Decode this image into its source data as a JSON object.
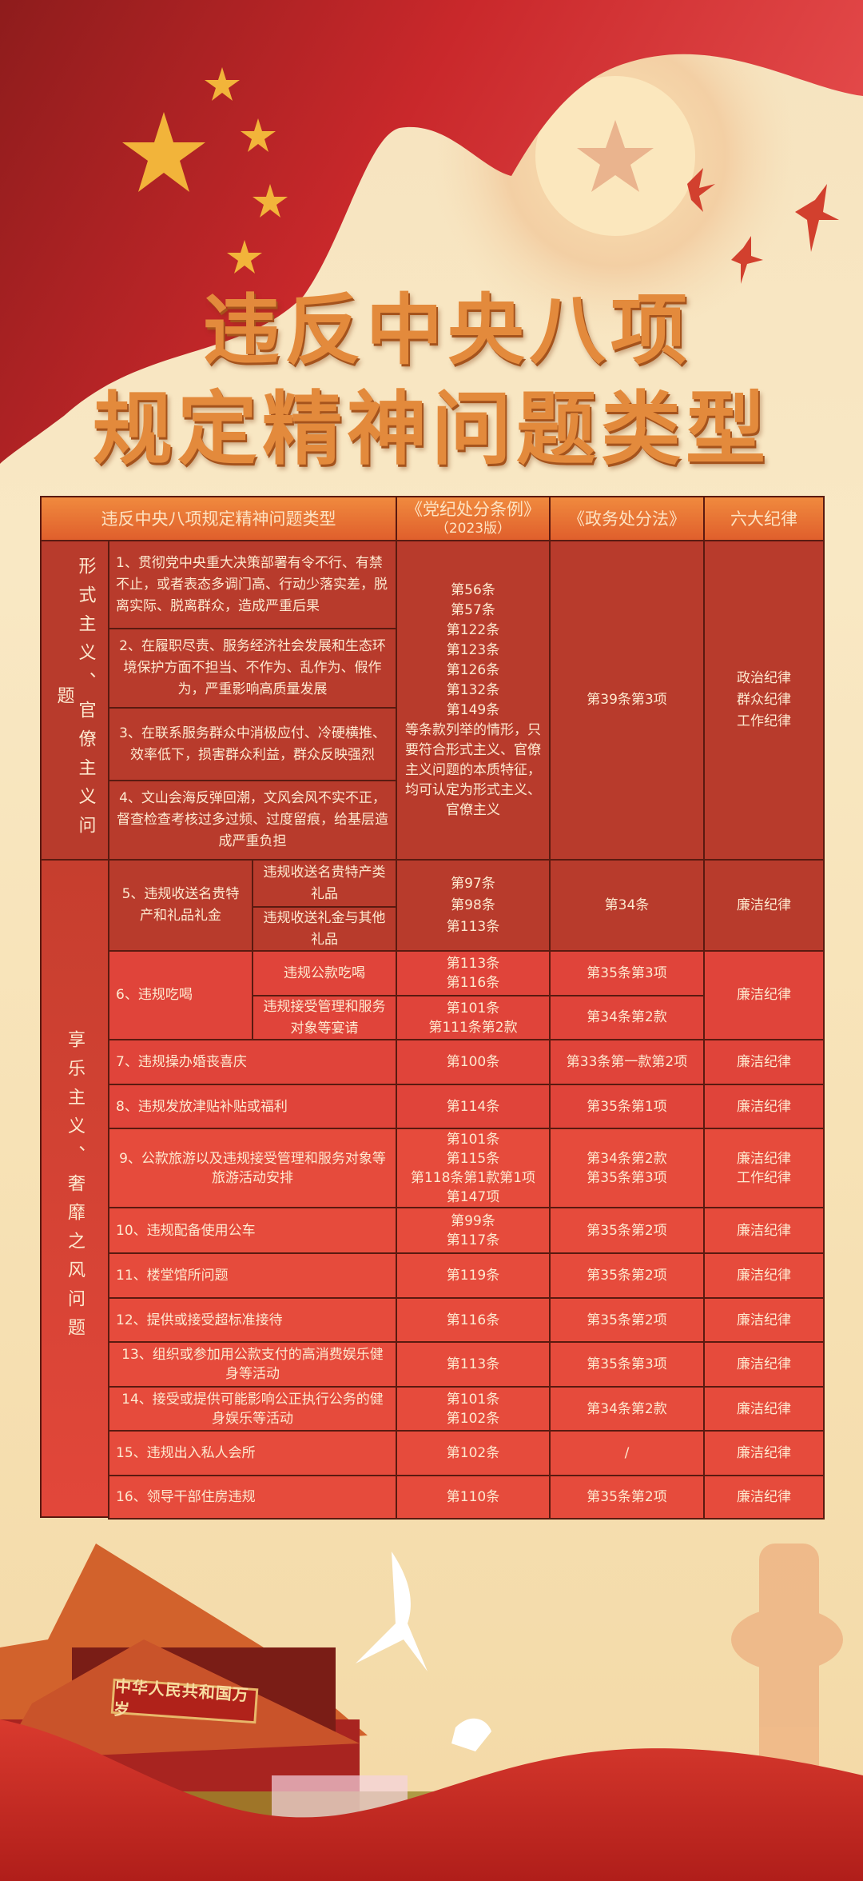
{
  "title": {
    "line1": "违反中央八项",
    "line2": "规定精神问题类型"
  },
  "colors": {
    "flag_red": "#c8262a",
    "title_gold": "#e38a3c",
    "header_orange": "#e9763a",
    "row_dark_red": "#b83b2c",
    "row_red": "#e0443a",
    "border": "#5a1a10",
    "text_cream": "#fde9cf"
  },
  "table": {
    "headers": [
      "违反中央八项规定精神问题类型",
      "《党纪处分条例》",
      "（2023版）",
      "《政务处分法》",
      "六大纪律"
    ],
    "groups": [
      {
        "label": "形式主义、官僚主义问题",
        "items": [
          "1、贯彻党中央重大决策部署有令不行、有禁不止，或者表态多调门高、行动少落实差，脱离实际、脱离群众，造成严重后果",
          "2、在履职尽责、服务经济社会发展和生态环境保护方面不担当、不作为、乱作为、假作为，严重影响高质量发展",
          "3、在联系服务群众中消极应付、冷硬横推、效率低下，损害群众利益，群众反映强烈",
          "4、文山会海反弹回潮，文风会风不实不正，督查检查考核过多过频、过度留痕，给基层造成严重负担"
        ],
        "party": "第56条\n第57条\n第122条\n第123条\n第126条\n第132条\n第149条\n等条款列举的情形，只要符合形式主义、官僚主义问题的本质特征，均可认定为形式主义、官僚主义",
        "gov": "第39条第3项",
        "discipline": "政治纪律\n群众纪律\n工作纪律"
      },
      {
        "label": "享乐主义、奢靡之风问题",
        "items": [
          {
            "name": "5、违规收送名贵特产和礼品礼金",
            "subs": [
              "违规收送名贵特产类礼品",
              "违规收送礼金与其他礼品"
            ],
            "party": "第97条\n第98条\n第113条",
            "gov": "第34条",
            "discipline": "廉洁纪律"
          },
          {
            "name": "6、违规吃喝",
            "subs": [
              "违规公款吃喝",
              "违规接受管理和服务对象等宴请"
            ],
            "party_subs": [
              "第113条\n第116条",
              "第101条\n第111条第2款"
            ],
            "gov_subs": [
              "第35条第3项",
              "第34条第2款"
            ],
            "discipline": "廉洁纪律"
          },
          {
            "name": "7、违规操办婚丧喜庆",
            "party": "第100条",
            "gov": "第33条第一款第2项",
            "discipline": "廉洁纪律"
          },
          {
            "name": "8、违规发放津贴补贴或福利",
            "party": "第114条",
            "gov": "第35条第1项",
            "discipline": "廉洁纪律"
          },
          {
            "name": "9、公款旅游以及违规接受管理和服务对象等旅游活动安排",
            "party": "第101条\n第115条\n第118条第1款第1项\n第147项",
            "gov": "第34条第2款\n第35条第3项",
            "discipline": "廉洁纪律\n工作纪律"
          },
          {
            "name": "10、违规配备使用公车",
            "party": "第99条\n第117条",
            "gov": "第35条第2项",
            "discipline": "廉洁纪律"
          },
          {
            "name": "11、楼堂馆所问题",
            "party": "第119条",
            "gov": "第35条第2项",
            "discipline": "廉洁纪律"
          },
          {
            "name": "12、提供或接受超标准接待",
            "party": "第116条",
            "gov": "第35条第2项",
            "discipline": "廉洁纪律"
          },
          {
            "name": "13、组织或参加用公款支付的高消费娱乐健身等活动",
            "party": "第113条",
            "gov": "第35条第3项",
            "discipline": "廉洁纪律"
          },
          {
            "name": "14、接受或提供可能影响公正执行公务的健身娱乐等活动",
            "party": "第101条\n第102条",
            "gov": "第34条第2款",
            "discipline": "廉洁纪律"
          },
          {
            "name": "15、违规出入私人会所",
            "party": "第102条",
            "gov": "/",
            "discipline": "廉洁纪律"
          },
          {
            "name": "16、领导干部住房违规",
            "party": "第110条",
            "gov": "第35条第2项",
            "discipline": "廉洁纪律"
          }
        ]
      }
    ]
  },
  "decor": {
    "gate_banner": "中华人民共和国万岁",
    "icons": [
      "flag-star-icon",
      "dove-icon",
      "tiananmen-gate-image",
      "huabiao-pillar-image"
    ]
  }
}
